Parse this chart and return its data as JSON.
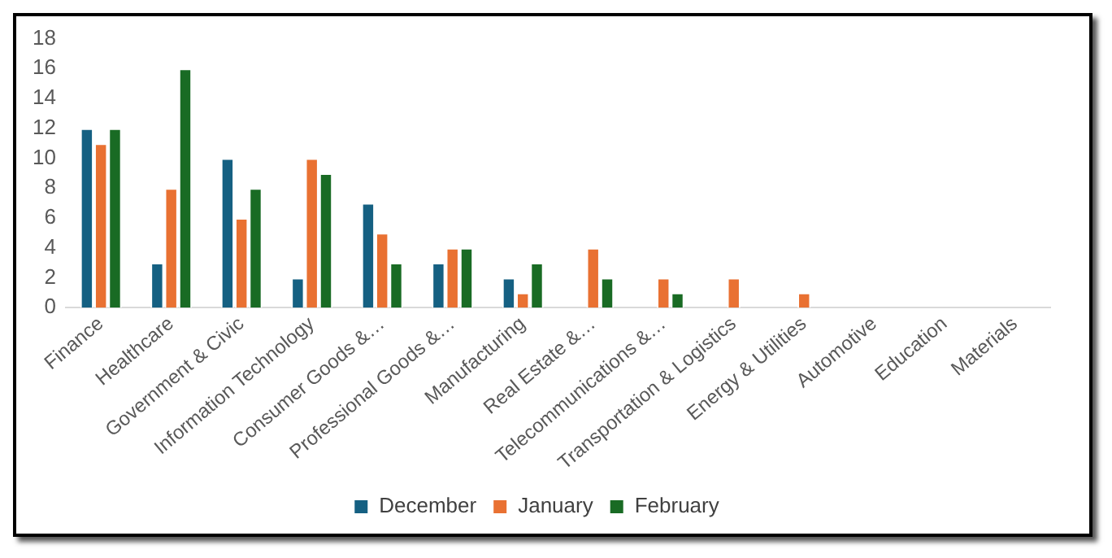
{
  "chart_data": {
    "type": "bar",
    "categories": [
      "Finance",
      "Healthcare",
      "Government & Civic",
      "Information Technology",
      "Consumer Goods &…",
      "Professional Goods &…",
      "Manufacturing",
      "Real Estate &…",
      "Telecommunications &…",
      "Transportation & Logistics",
      "Energy & Utilities",
      "Automotive",
      "Education",
      "Materials"
    ],
    "series": [
      {
        "name": "December",
        "color": "#156082",
        "values": [
          12,
          3,
          10,
          2,
          7,
          3,
          2,
          0,
          0,
          0,
          0,
          0,
          0,
          0
        ]
      },
      {
        "name": "January",
        "color": "#e97132",
        "values": [
          11,
          8,
          6,
          10,
          5,
          4,
          1,
          4,
          2,
          2,
          1,
          0,
          0,
          0
        ]
      },
      {
        "name": "February",
        "color": "#196b24",
        "values": [
          12,
          16,
          8,
          9,
          3,
          4,
          3,
          2,
          1,
          0,
          0,
          0,
          0,
          0
        ]
      }
    ],
    "ylim": [
      0,
      18
    ],
    "yticks": [
      0,
      2,
      4,
      6,
      8,
      10,
      12,
      14,
      16,
      18
    ],
    "grid": false,
    "legend": "bottom"
  }
}
